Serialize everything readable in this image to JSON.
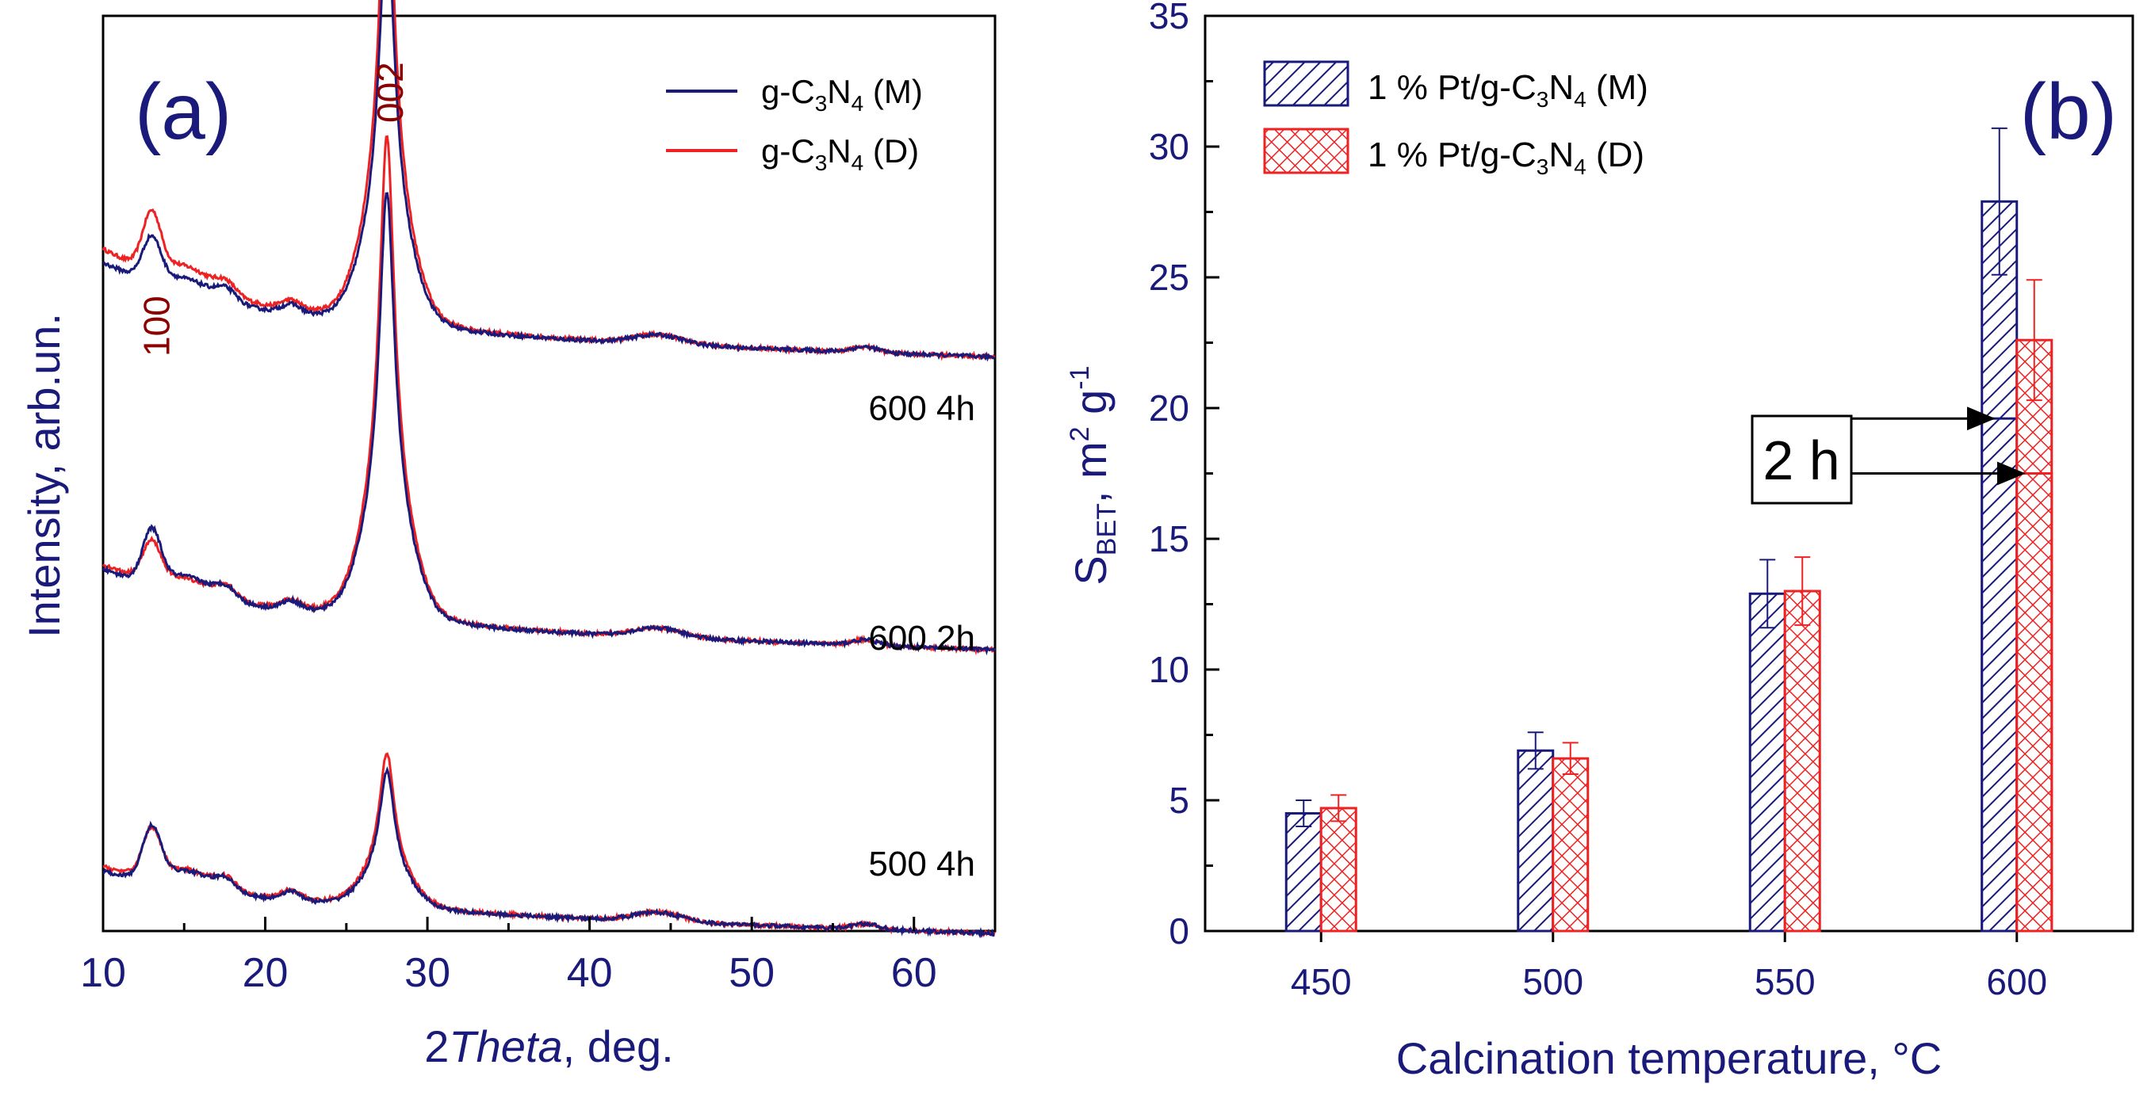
{
  "chart_data": [
    {
      "type": "line",
      "panel_label": "(a)",
      "xlabel_number": "2",
      "xlabel_italic": "Theta",
      "xlabel_suffix": ", deg.",
      "ylabel": "Intensity, arb.un.",
      "xlim": [
        10,
        65
      ],
      "xticks": [
        "10",
        "20",
        "30",
        "40",
        "50",
        "60"
      ],
      "peak_labels": [
        {
          "text": "100",
          "x": 13.2
        },
        {
          "text": "002",
          "x": 27.6
        }
      ],
      "legend": [
        {
          "base": "g-C",
          "sub1": "3",
          "mid": "N",
          "sub2": "4",
          "suffix": " (M)",
          "color": "#1a1a7a"
        },
        {
          "base": "g-C",
          "sub1": "3",
          "mid": "N",
          "sub2": "4",
          "suffix": " (D)",
          "color": "#ee2222"
        }
      ],
      "curves": [
        {
          "name": "600 4h",
          "label": "600 4h",
          "offset": 0.66,
          "M": {
            "peak100": 0.045,
            "peak002": 0.45,
            "bg": 0.07
          },
          "D": {
            "peak100": 0.06,
            "peak002": 0.52,
            "bg": 0.085
          }
        },
        {
          "name": "600 2h",
          "label": "600 2h",
          "offset": 0.34,
          "M": {
            "peak100": 0.055,
            "peak002": 0.47,
            "bg": 0.055
          },
          "D": {
            "peak100": 0.04,
            "peak002": 0.53,
            "bg": 0.06
          }
        },
        {
          "name": "500 4h",
          "label": "500 4h",
          "offset": 0.03,
          "M": {
            "peak100": 0.055,
            "peak002": 0.15,
            "bg": 0.035
          },
          "D": {
            "peak100": 0.05,
            "peak002": 0.17,
            "bg": 0.04
          }
        }
      ]
    },
    {
      "type": "bar",
      "panel_label": "(b)",
      "xlabel": "Calcination temperature, °C",
      "ylabel_base": "S",
      "ylabel_sub": "BET",
      "ylabel_mid": ", m",
      "ylabel_sup1": "2",
      "ylabel_g": " g",
      "ylabel_sup2": "-1",
      "categories": [
        "450",
        "500",
        "550",
        "600"
      ],
      "ylim": [
        0,
        35
      ],
      "yticks": [
        "0",
        "5",
        "10",
        "15",
        "20",
        "25",
        "30",
        "35"
      ],
      "series": [
        {
          "name": "1 % Pt/g-C3N4 (M)",
          "color": "#1a1a7a",
          "pattern": "hatch",
          "values": [
            4.5,
            6.9,
            12.9,
            27.9
          ],
          "errors": [
            0.5,
            0.7,
            1.3,
            2.8
          ],
          "inner_2h": [
            null,
            null,
            null,
            19.6
          ]
        },
        {
          "name": "1 % Pt/g-C3N4 (D)",
          "color": "#ee2222",
          "pattern": "crosshatch",
          "values": [
            4.7,
            6.6,
            13.0,
            22.6
          ],
          "errors": [
            0.5,
            0.6,
            1.3,
            2.3
          ],
          "inner_2h": [
            null,
            null,
            null,
            17.5
          ]
        }
      ],
      "legend": [
        {
          "prefix": "1 % Pt/g-C",
          "sub1": "3",
          "mid": "N",
          "sub2": "4",
          "suffix": " (M)"
        },
        {
          "prefix": "1 % Pt/g-C",
          "sub1": "3",
          "mid": "N",
          "sub2": "4",
          "suffix": " (D)"
        }
      ],
      "annotation": "2 h"
    }
  ]
}
